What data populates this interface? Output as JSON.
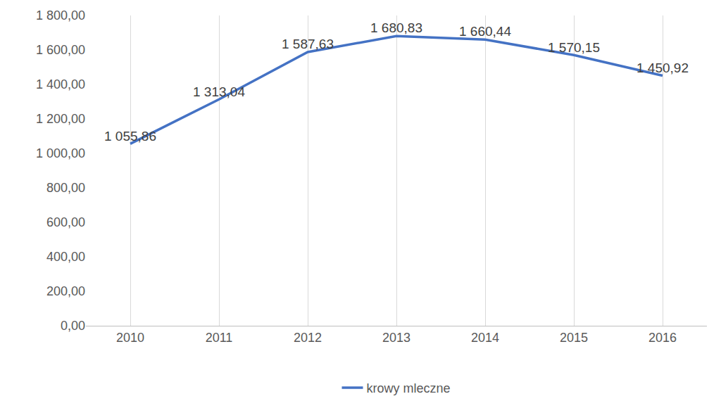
{
  "chart_data": {
    "type": "line",
    "categories": [
      "2010",
      "2011",
      "2012",
      "2013",
      "2014",
      "2015",
      "2016"
    ],
    "series": [
      {
        "name": "krowy mleczne",
        "color": "#4472c4",
        "values": [
          1055.86,
          1313.04,
          1587.63,
          1680.83,
          1660.44,
          1570.15,
          1450.92
        ],
        "value_labels": [
          "1 055,86",
          "1 313,04",
          "1 587,63",
          "1 680,83",
          "1 660,44",
          "1 570,15",
          "1 450,92"
        ]
      }
    ],
    "ylim": [
      0,
      1800
    ],
    "yticks": [
      {
        "value": 0,
        "label": "0,00"
      },
      {
        "value": 200,
        "label": "200,00"
      },
      {
        "value": 400,
        "label": "400,00"
      },
      {
        "value": 600,
        "label": "600,00"
      },
      {
        "value": 800,
        "label": "800,00"
      },
      {
        "value": 1000,
        "label": "1 000,00"
      },
      {
        "value": 1200,
        "label": "1 200,00"
      },
      {
        "value": 1400,
        "label": "1 400,00"
      },
      {
        "value": 1600,
        "label": "1 600,00"
      },
      {
        "value": 1800,
        "label": "1 800,00"
      }
    ],
    "grid": true,
    "legend": "bottom",
    "data_labels": true
  }
}
